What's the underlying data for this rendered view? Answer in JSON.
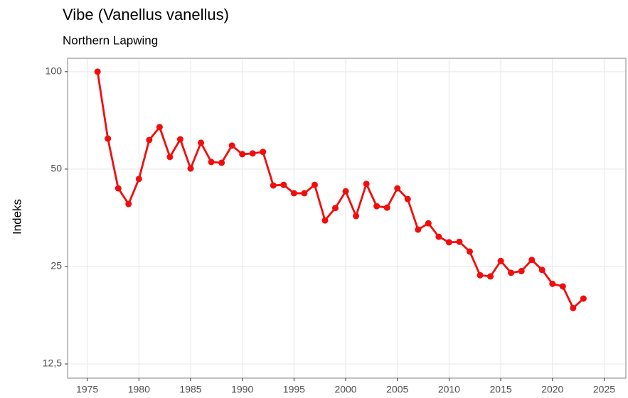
{
  "chart_data": {
    "type": "line",
    "title": "Vibe (Vanellus vanellus)",
    "subtitle": "Northern Lapwing",
    "ylabel": "Indeks",
    "x": [
      1976,
      1977,
      1978,
      1979,
      1980,
      1981,
      1982,
      1983,
      1984,
      1985,
      1986,
      1987,
      1988,
      1989,
      1990,
      1991,
      1992,
      1993,
      1994,
      1995,
      1996,
      1997,
      1998,
      1999,
      2000,
      2001,
      2002,
      2003,
      2004,
      2005,
      2006,
      2007,
      2008,
      2009,
      2010,
      2011,
      2012,
      2013,
      2014,
      2015,
      2016,
      2017,
      2018,
      2019,
      2020,
      2021,
      2022,
      2023
    ],
    "series": [
      {
        "name": "Vibe",
        "color": "#f20d0d",
        "values": [
          100,
          62.1,
          43.6,
          39.0,
          46.6,
          61.5,
          67.4,
          54.5,
          61.8,
          50.2,
          60.3,
          52.6,
          52.3,
          59.1,
          55.6,
          55.9,
          56.5,
          44.5,
          44.7,
          42.1,
          42.1,
          44.7,
          34.7,
          37.9,
          42.7,
          35.8,
          45.0,
          38.4,
          38.0,
          43.6,
          40.4,
          32.5,
          34.0,
          30.9,
          29.7,
          29.8,
          27.8,
          23.5,
          23.3,
          26.0,
          23.9,
          24.2,
          26.2,
          24.4,
          22.1,
          21.7,
          18.6,
          19.9
        ]
      }
    ],
    "xlim": [
      1973.1,
      2027.1
    ],
    "xticks": [
      1975,
      1980,
      1985,
      1990,
      1995,
      2000,
      2005,
      2010,
      2015,
      2020,
      2025
    ],
    "ylim": [
      11.3,
      110
    ],
    "yticks": [
      {
        "value": 12.5,
        "label": "12,5"
      },
      25,
      50,
      100
    ],
    "log_y": true,
    "grid": true
  }
}
